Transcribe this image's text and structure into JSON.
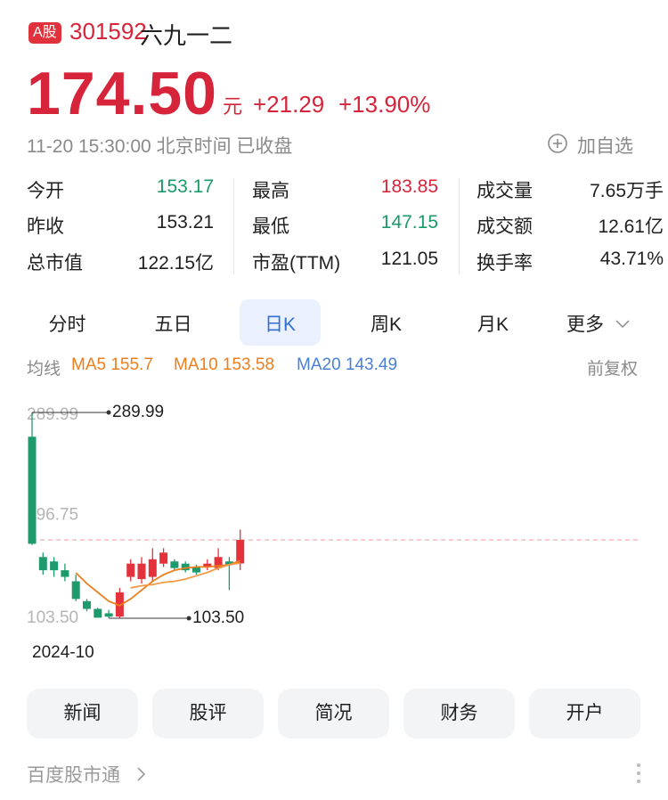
{
  "header": {
    "badge": "A股",
    "code": "301592",
    "name": "六九一二"
  },
  "quote": {
    "price": "174.50",
    "unit": "元",
    "change": "+21.29",
    "change_pct": "+13.90%",
    "time": "11-20 15:30:00 北京时间 已收盘",
    "watch": "加自选"
  },
  "stats": [
    {
      "label": "今开",
      "value": "153.17",
      "color": "#1a9a68"
    },
    {
      "label": "最高",
      "value": "183.85",
      "color": "#d6243a"
    },
    {
      "label": "成交量",
      "value": "7.65万手"
    },
    {
      "label": "昨收",
      "value": "153.21"
    },
    {
      "label": "最低",
      "value": "147.15",
      "color": "#1a9a68"
    },
    {
      "label": "成交额",
      "value": "12.61亿"
    },
    {
      "label": "总市值",
      "value": "122.15亿"
    },
    {
      "label": "市盈(TTM)",
      "value": "121.05"
    },
    {
      "label": "换手率",
      "value": "43.71%"
    }
  ],
  "tabs": [
    "分时",
    "五日",
    "日K",
    "周K",
    "月K",
    "更多"
  ],
  "active_tab": 2,
  "ma_legend": {
    "label": "均线",
    "items": [
      {
        "text": "MA5 155.7",
        "color": "#ee7d1c"
      },
      {
        "text": "MA10 153.58",
        "color": "#ee7d1c"
      },
      {
        "text": "MA20 143.49",
        "color": "#4a7fd6"
      }
    ]
  },
  "adjust": "前复权",
  "chart_data": {
    "type": "candlestick",
    "categories": [
      "2024-10",
      null,
      null,
      null,
      null,
      null,
      null,
      null,
      null,
      null,
      null,
      null,
      null,
      null,
      null,
      null,
      null,
      null,
      null,
      null
    ],
    "open": [
      268,
      159,
      155,
      147,
      137,
      119,
      112,
      108,
      105,
      141,
      139,
      141,
      153,
      155,
      153,
      150,
      150,
      149,
      155,
      153.17
    ],
    "close": [
      171,
      147,
      147,
      141,
      121,
      112,
      104,
      105,
      127,
      153,
      153,
      157,
      163,
      149,
      147,
      145,
      153,
      159,
      152,
      174.5
    ],
    "high": [
      289.99,
      163,
      159,
      153,
      143,
      121,
      113,
      111,
      131,
      157,
      159,
      167,
      167,
      157,
      155,
      152,
      157,
      167,
      159,
      183.85
    ],
    "low": [
      170,
      143,
      141,
      137,
      119,
      110,
      105,
      103.5,
      104,
      137,
      135,
      137,
      150,
      147,
      145,
      143,
      147,
      147,
      129,
      147.15
    ],
    "ma": [
      {
        "name": "MA5",
        "color": "#ee7d1c",
        "values": [
          null,
          null,
          null,
          null,
          144.7,
          135,
          127,
          119,
          115,
          121,
          129,
          137,
          143,
          147,
          149,
          150,
          150,
          151,
          152,
          155.7
        ]
      },
      {
        "name": "MA10",
        "color": "#f09a4a",
        "values": [
          null,
          null,
          null,
          null,
          null,
          null,
          null,
          null,
          null,
          131,
          133,
          134,
          136,
          137,
          139,
          142,
          145,
          149,
          152,
          153.58
        ]
      }
    ],
    "up_color": "#e3323b",
    "down_color": "#1e9b6c",
    "ylim": [
      103.5,
      289.99
    ],
    "yticks": [
      {
        "value": 289.99,
        "label": "289.99"
      },
      {
        "value": 196.75,
        "label": "196.75"
      },
      {
        "value": 103.5,
        "label": "103.50"
      }
    ],
    "annotations": [
      {
        "value": 289.99,
        "label": "289.99"
      },
      {
        "value": 103.5,
        "label": "103.50"
      }
    ],
    "last_price": 174.5
  },
  "buttons": [
    "新闻",
    "股评",
    "简况",
    "财务",
    "开户"
  ],
  "footer": "百度股市通"
}
